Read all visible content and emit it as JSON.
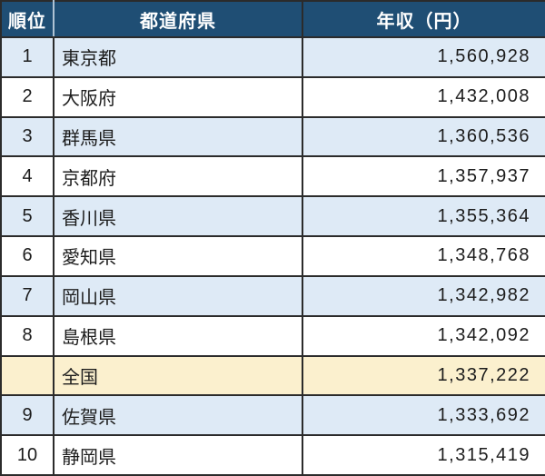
{
  "chart_data": {
    "type": "table",
    "title": "",
    "columns": [
      "順位",
      "都道府県",
      "年収（円）"
    ],
    "rows": [
      {
        "rank": "1",
        "prefecture": "東京都",
        "income_yen": 1560928,
        "income_display": "1,560,928",
        "row_style": "alt-blue"
      },
      {
        "rank": "2",
        "prefecture": "大阪府",
        "income_yen": 1432008,
        "income_display": "1,432,008",
        "row_style": "plain"
      },
      {
        "rank": "3",
        "prefecture": "群馬県",
        "income_yen": 1360536,
        "income_display": "1,360,536",
        "row_style": "alt-blue"
      },
      {
        "rank": "4",
        "prefecture": "京都府",
        "income_yen": 1357937,
        "income_display": "1,357,937",
        "row_style": "plain"
      },
      {
        "rank": "5",
        "prefecture": "香川県",
        "income_yen": 1355364,
        "income_display": "1,355,364",
        "row_style": "alt-blue"
      },
      {
        "rank": "6",
        "prefecture": "愛知県",
        "income_yen": 1348768,
        "income_display": "1,348,768",
        "row_style": "plain"
      },
      {
        "rank": "7",
        "prefecture": "岡山県",
        "income_yen": 1342982,
        "income_display": "1,342,982",
        "row_style": "alt-blue"
      },
      {
        "rank": "8",
        "prefecture": "島根県",
        "income_yen": 1342092,
        "income_display": "1,342,092",
        "row_style": "plain"
      },
      {
        "rank": "",
        "prefecture": "全国",
        "income_yen": 1337222,
        "income_display": "1,337,222",
        "row_style": "national"
      },
      {
        "rank": "9",
        "prefecture": "佐賀県",
        "income_yen": 1333692,
        "income_display": "1,333,692",
        "row_style": "alt-blue"
      },
      {
        "rank": "10",
        "prefecture": "静岡県",
        "income_yen": 1315419,
        "income_display": "1,315,419",
        "row_style": "plain"
      }
    ],
    "layout": {
      "header_position": "top",
      "rank_align": "center",
      "prefecture_align": "left",
      "income_align": "right",
      "grid": true
    }
  },
  "colors": {
    "header_bg": "#1F4E74",
    "header_text": "#FFFFFF",
    "alt_row_bg": "#DEEAF6",
    "plain_row_bg": "#FFFFFF",
    "national_row_bg": "#FBF0CE",
    "border": "#2B2B2B",
    "body_text": "#1C1C1C"
  }
}
